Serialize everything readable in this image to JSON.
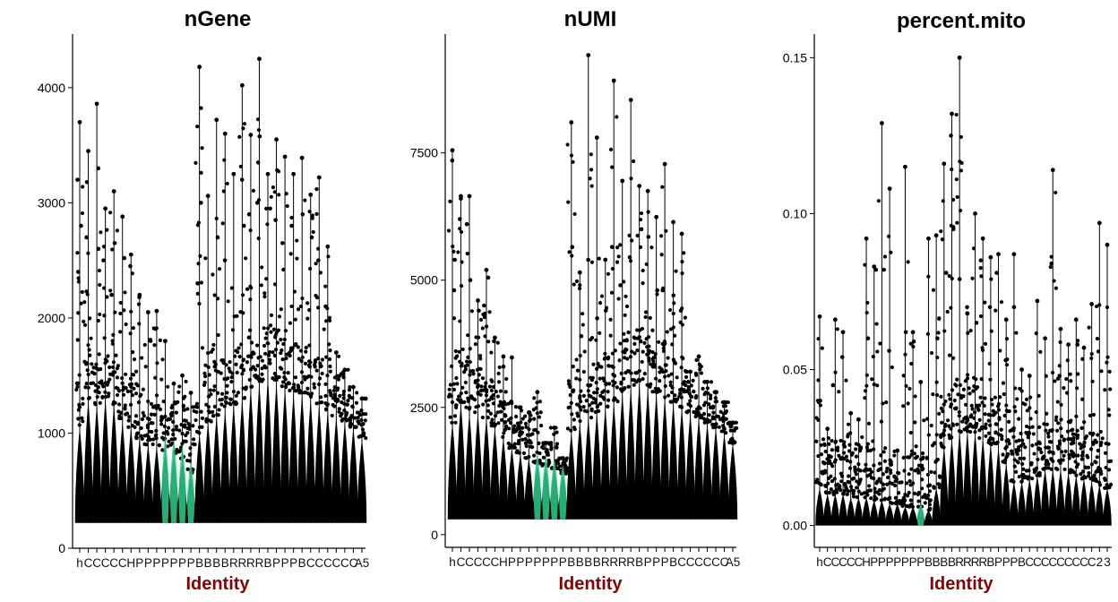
{
  "colors": {
    "axis": "#000000",
    "xlabel": "#8b0000",
    "point": "#000000",
    "violin_accent": "#2ecc8a"
  },
  "chart_data": [
    {
      "type": "violin",
      "title": "nGene",
      "xlabel": "Identity",
      "ylabel": "",
      "ylim": [
        0,
        4450
      ],
      "yticks": [
        0,
        1000,
        2000,
        3000,
        4000
      ],
      "ytick_labels": [
        "0",
        "1000",
        "2000",
        "3000",
        "4000"
      ],
      "categories": [
        "h",
        "C",
        "C",
        "C",
        "C",
        "C",
        "H",
        "P",
        "P",
        "P",
        "P",
        "P",
        "P",
        "P",
        "B",
        "B",
        "B",
        "B",
        "R",
        "R",
        "R",
        "R",
        "B",
        "P",
        "P",
        "P",
        "B",
        "C",
        "C",
        "C",
        "C",
        "C",
        "C",
        "A5"
      ],
      "baseline": 220,
      "body_top": [
        1050,
        1300,
        1250,
        1300,
        1250,
        1100,
        1050,
        950,
        900,
        880,
        850,
        820,
        780,
        650,
        1000,
        1100,
        1150,
        1200,
        1250,
        1300,
        1400,
        1450,
        1500,
        1450,
        1400,
        1350,
        1350,
        1300,
        1250,
        1200,
        1150,
        1100,
        1050,
        950
      ],
      "max": [
        3700,
        3450,
        3860,
        2950,
        3100,
        2880,
        2550,
        2200,
        2050,
        2060,
        1800,
        1430,
        1500,
        1350,
        4180,
        3060,
        3720,
        3600,
        3250,
        4020,
        3590,
        4250,
        3250,
        3550,
        3400,
        3250,
        3390,
        3070,
        3220,
        2620,
        1700,
        1550,
        1400,
        1300
      ],
      "scatter": [
        {
          "cat": 0,
          "y": 3200
        },
        {
          "cat": 0,
          "y": 2800
        },
        {
          "cat": 0,
          "y": 2400
        },
        {
          "cat": 1,
          "y": 3180
        },
        {
          "cat": 1,
          "y": 2700
        },
        {
          "cat": 2,
          "y": 3300
        },
        {
          "cat": 2,
          "y": 2600
        },
        {
          "cat": 3,
          "y": 2500
        },
        {
          "cat": 4,
          "y": 2650
        },
        {
          "cat": 4,
          "y": 2200
        },
        {
          "cat": 5,
          "y": 2520
        },
        {
          "cat": 6,
          "y": 2450
        },
        {
          "cat": 7,
          "y": 2180
        },
        {
          "cat": 8,
          "y": 1800
        },
        {
          "cat": 14,
          "y": 3000
        },
        {
          "cat": 14,
          "y": 2300
        },
        {
          "cat": 16,
          "y": 2700
        },
        {
          "cat": 17,
          "y": 2500
        },
        {
          "cat": 19,
          "y": 3200
        },
        {
          "cat": 19,
          "y": 2800
        },
        {
          "cat": 20,
          "y": 2900
        },
        {
          "cat": 21,
          "y": 3000
        },
        {
          "cat": 21,
          "y": 3350
        },
        {
          "cat": 22,
          "y": 2950
        },
        {
          "cat": 23,
          "y": 2850
        },
        {
          "cat": 24,
          "y": 2650
        },
        {
          "cat": 25,
          "y": 2800
        },
        {
          "cat": 26,
          "y": 2900
        },
        {
          "cat": 27,
          "y": 2700
        },
        {
          "cat": 28,
          "y": 2500
        },
        {
          "cat": 29,
          "y": 2100
        }
      ]
    },
    {
      "type": "violin",
      "title": "nUMI",
      "xlabel": "Identity",
      "ylabel": "",
      "ylim": [
        -250,
        9800
      ],
      "yticks": [
        0,
        2500,
        5000,
        7500
      ],
      "ytick_labels": [
        "0",
        "2500",
        "5000",
        "7500"
      ],
      "categories": [
        "h",
        "C",
        "C",
        "C",
        "C",
        "C",
        "H",
        "P",
        "P",
        "P",
        "P",
        "P",
        "P",
        "P",
        "B",
        "B",
        "B",
        "B",
        "R",
        "R",
        "R",
        "R",
        "B",
        "P",
        "P",
        "P",
        "B",
        "C",
        "C",
        "C",
        "C",
        "C",
        "C",
        "A5"
      ],
      "baseline": 300,
      "body_top": [
        2200,
        2600,
        2400,
        2400,
        2300,
        2100,
        1900,
        1700,
        1600,
        1500,
        1400,
        1350,
        1300,
        1200,
        2000,
        2200,
        2300,
        2400,
        2500,
        2600,
        2800,
        2900,
        3000,
        2900,
        2800,
        2700,
        2600,
        2500,
        2400,
        2300,
        2200,
        2100,
        2000,
        1800
      ],
      "max": [
        7550,
        6650,
        6650,
        4600,
        5200,
        3870,
        3500,
        3480,
        2500,
        2400,
        2800,
        1800,
        2100,
        1500,
        8100,
        5150,
        9420,
        7800,
        5400,
        8920,
        6950,
        8540,
        6850,
        6750,
        6240,
        7280,
        6140,
        5910,
        3200,
        3500,
        3000,
        2800,
        2600,
        2200
      ],
      "scatter": [
        {
          "cat": 0,
          "y": 7350
        },
        {
          "cat": 0,
          "y": 5400
        },
        {
          "cat": 0,
          "y": 4800
        },
        {
          "cat": 1,
          "y": 6600
        },
        {
          "cat": 1,
          "y": 6200
        },
        {
          "cat": 2,
          "y": 6100
        },
        {
          "cat": 2,
          "y": 5000
        },
        {
          "cat": 3,
          "y": 4400
        },
        {
          "cat": 4,
          "y": 5050
        },
        {
          "cat": 4,
          "y": 4500
        },
        {
          "cat": 5,
          "y": 3800
        },
        {
          "cat": 6,
          "y": 3300
        },
        {
          "cat": 14,
          "y": 5650
        },
        {
          "cat": 15,
          "y": 3900
        },
        {
          "cat": 16,
          "y": 5400
        },
        {
          "cat": 17,
          "y": 4250
        },
        {
          "cat": 18,
          "y": 4400
        },
        {
          "cat": 19,
          "y": 5650
        },
        {
          "cat": 20,
          "y": 4900
        },
        {
          "cat": 21,
          "y": 5450
        },
        {
          "cat": 22,
          "y": 6000
        },
        {
          "cat": 23,
          "y": 5850
        },
        {
          "cat": 24,
          "y": 4800
        },
        {
          "cat": 25,
          "y": 4800
        },
        {
          "cat": 26,
          "y": 4700
        },
        {
          "cat": 27,
          "y": 4400
        },
        {
          "cat": 28,
          "y": 3000
        }
      ]
    },
    {
      "type": "violin",
      "title": "percent.mito",
      "xlabel": "Identity",
      "ylabel": "",
      "ylim": [
        -0.007,
        0.157
      ],
      "yticks": [
        0.0,
        0.05,
        0.1,
        0.15
      ],
      "ytick_labels": [
        "0.00",
        "0.05",
        "0.10",
        "0.15"
      ],
      "categories": [
        "h",
        "C",
        "C",
        "C",
        "C",
        "C",
        "H",
        "P",
        "P",
        "P",
        "P",
        "P",
        "P",
        "P",
        "B",
        "B",
        "B",
        "B",
        "R",
        "R",
        "R",
        "R",
        "B",
        "P",
        "P",
        "P",
        "B",
        "C",
        "C",
        "C",
        "C",
        "C",
        "C",
        "C",
        "C",
        "C",
        "2",
        "3"
      ],
      "baseline": 0.0,
      "body_top": [
        0.012,
        0.01,
        0.01,
        0.01,
        0.009,
        0.009,
        0.009,
        0.008,
        0.008,
        0.007,
        0.007,
        0.006,
        0.006,
        0.006,
        0.005,
        0.012,
        0.025,
        0.028,
        0.03,
        0.03,
        0.03,
        0.028,
        0.026,
        0.025,
        0.02,
        0.014,
        0.014,
        0.015,
        0.016,
        0.018,
        0.018,
        0.018,
        0.017,
        0.016,
        0.015,
        0.014,
        0.013,
        0.012
      ],
      "max": [
        0.067,
        0.031,
        0.066,
        0.062,
        0.036,
        0.034,
        0.092,
        0.083,
        0.129,
        0.108,
        0.024,
        0.115,
        0.062,
        0.046,
        0.092,
        0.093,
        0.116,
        0.132,
        0.15,
        0.068,
        0.1,
        0.092,
        0.086,
        0.087,
        0.066,
        0.087,
        0.05,
        0.048,
        0.072,
        0.06,
        0.114,
        0.063,
        0.058,
        0.066,
        0.057,
        0.071,
        0.097,
        0.09
      ],
      "scatter": [
        {
          "cat": 0,
          "y": 0.04
        },
        {
          "cat": 1,
          "y": 0.022
        },
        {
          "cat": 2,
          "y": 0.045
        },
        {
          "cat": 3,
          "y": 0.054
        },
        {
          "cat": 6,
          "y": 0.06
        },
        {
          "cat": 7,
          "y": 0.082
        },
        {
          "cat": 8,
          "y": 0.082
        },
        {
          "cat": 9,
          "y": 0.056
        },
        {
          "cat": 11,
          "y": 0.062
        },
        {
          "cat": 12,
          "y": 0.059
        },
        {
          "cat": 15,
          "y": 0.06
        },
        {
          "cat": 16,
          "y": 0.081
        },
        {
          "cat": 17,
          "y": 0.125
        },
        {
          "cat": 17,
          "y": 0.095
        },
        {
          "cat": 18,
          "y": 0.079
        },
        {
          "cat": 19,
          "y": 0.07
        },
        {
          "cat": 20,
          "y": 0.065
        },
        {
          "cat": 21,
          "y": 0.085
        },
        {
          "cat": 22,
          "y": 0.07
        },
        {
          "cat": 23,
          "y": 0.081
        },
        {
          "cat": 24,
          "y": 0.053
        },
        {
          "cat": 25,
          "y": 0.07
        },
        {
          "cat": 30,
          "y": 0.084
        },
        {
          "cat": 31,
          "y": 0.048
        },
        {
          "cat": 33,
          "y": 0.058
        }
      ]
    }
  ]
}
